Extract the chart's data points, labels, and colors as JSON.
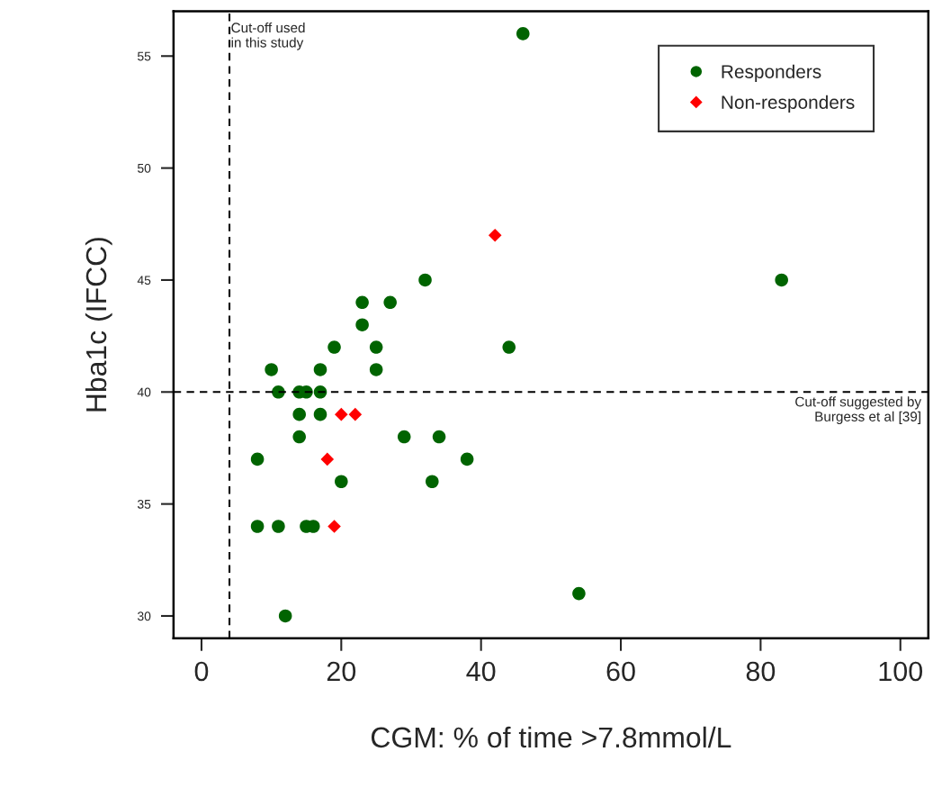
{
  "chart_data": {
    "type": "scatter",
    "xlabel": "CGM: % of time >7.8mmol/L",
    "ylabel": "Hba1c (IFCC)",
    "xlim": [
      -4,
      104
    ],
    "xticks": [
      0,
      20,
      40,
      60,
      80,
      100
    ],
    "ylim": [
      29,
      57
    ],
    "yticks": [
      30,
      35,
      40,
      45,
      50,
      55
    ],
    "grid": false,
    "legend": "top right",
    "series": [
      {
        "name": "Responders",
        "color": "#006400",
        "marker": "circle",
        "x": [
          46,
          83,
          32,
          23,
          27,
          23,
          19,
          25,
          44,
          10,
          17,
          25,
          11,
          14,
          15,
          17,
          14,
          17,
          14,
          29,
          34,
          8,
          38,
          20,
          33,
          8,
          11,
          15,
          16,
          12,
          54
        ],
        "values": [
          56,
          45,
          45,
          44,
          44,
          43,
          42,
          42,
          42,
          41,
          41,
          41,
          40,
          40,
          40,
          40,
          39,
          39,
          38,
          38,
          38,
          37,
          37,
          36,
          36,
          34,
          34,
          34,
          34,
          30,
          31
        ]
      },
      {
        "name": "Non-responders",
        "color": "#ff0000",
        "marker": "diamond",
        "x": [
          42,
          20,
          22,
          18,
          19
        ],
        "values": [
          47,
          39,
          39,
          37,
          34
        ]
      }
    ],
    "ref_lines": [
      {
        "axis": "x",
        "value": 4,
        "label": "Cut-off used\nin this study",
        "line_style": "dashed",
        "color": "#000000"
      },
      {
        "axis": "y",
        "value": 40,
        "label": "Cut-off suggested by\nBurgess et al [39]",
        "line_style": "dashed",
        "color": "#000000"
      }
    ]
  }
}
